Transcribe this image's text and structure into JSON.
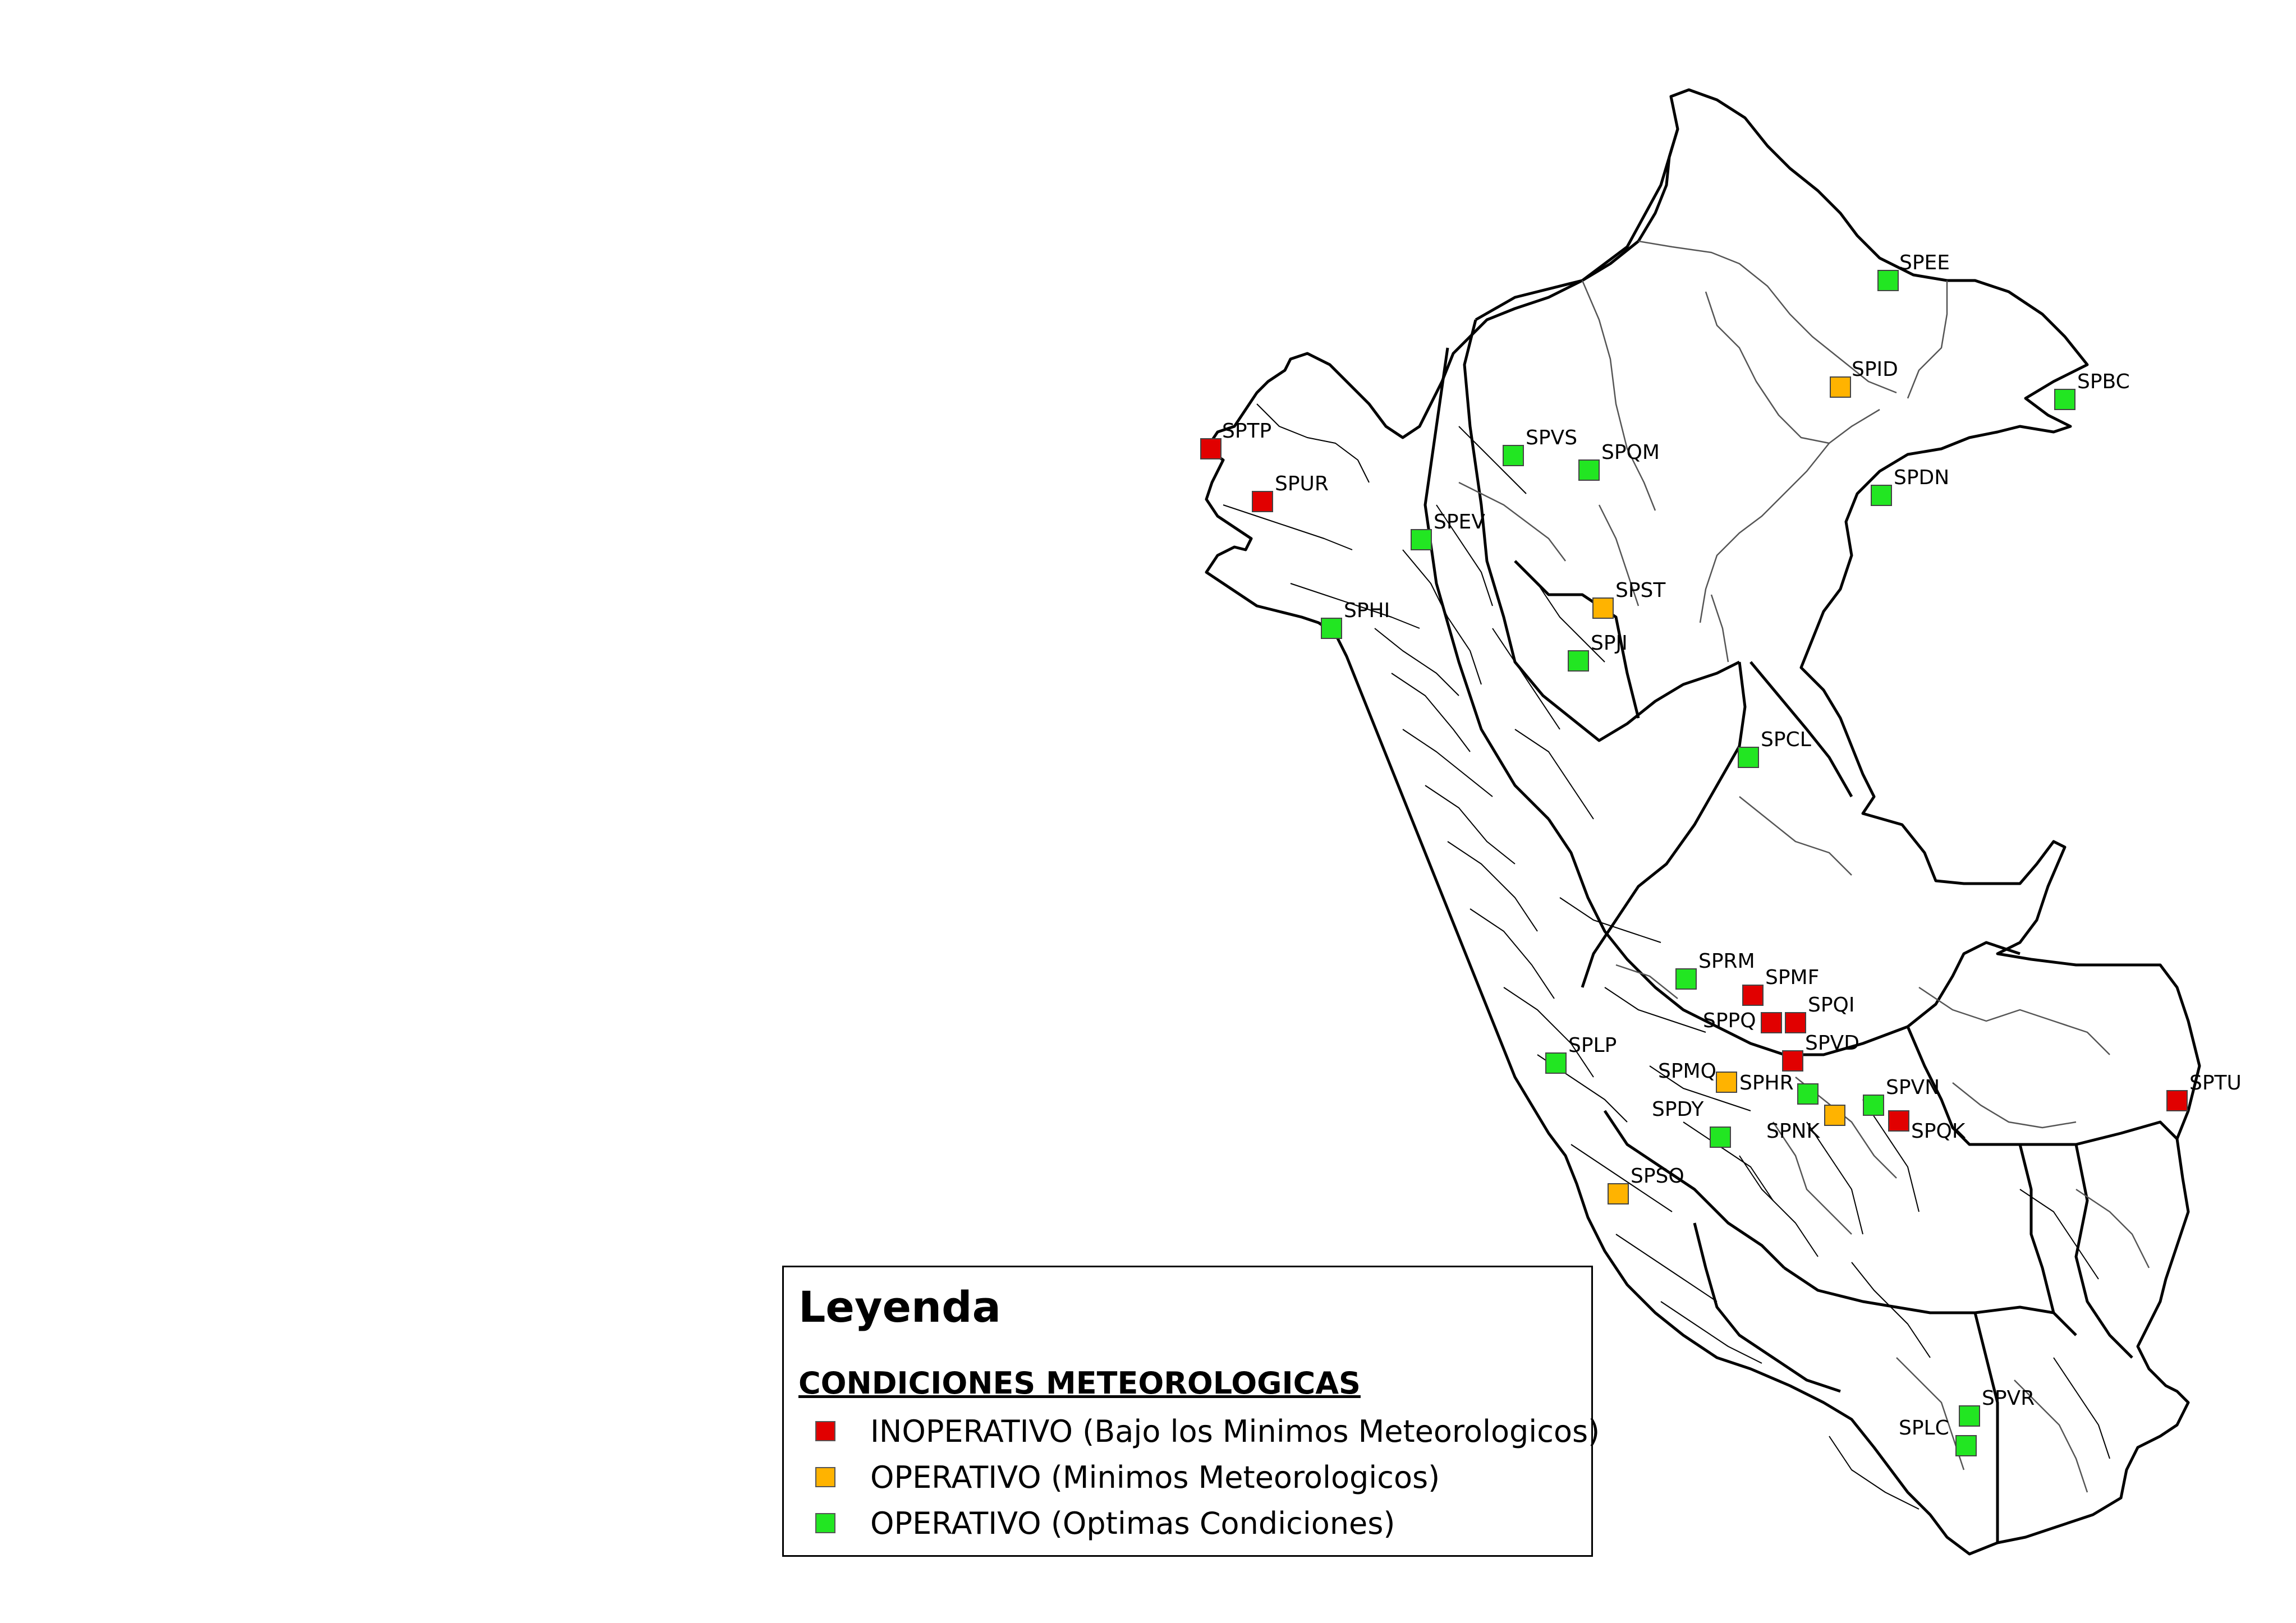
{
  "legend": {
    "title": "Leyenda",
    "subtitle": "CONDICIONES METEOROLOGICAS",
    "items": [
      {
        "label": "INOPERATIVO (Bajo los Minimos Meteorologicos)",
        "status": "inoperativo",
        "color": "#e10000"
      },
      {
        "label": "OPERATIVO (Minimos Meteorologicos)",
        "status": "minimos",
        "color": "#ffb300"
      },
      {
        "label": "OPERATIVO (Optimas Condiciones)",
        "status": "optimas",
        "color": "#22e622"
      }
    ]
  },
  "stations": [
    {
      "code": "SPEE",
      "status": "optimas"
    },
    {
      "code": "SPID",
      "status": "minimos"
    },
    {
      "code": "SPBC",
      "status": "optimas"
    },
    {
      "code": "SPTP",
      "status": "inoperativo"
    },
    {
      "code": "SPVS",
      "status": "optimas"
    },
    {
      "code": "SPQM",
      "status": "optimas"
    },
    {
      "code": "SPDN",
      "status": "optimas"
    },
    {
      "code": "SPUR",
      "status": "inoperativo"
    },
    {
      "code": "SPEV",
      "status": "optimas"
    },
    {
      "code": "SPST",
      "status": "minimos"
    },
    {
      "code": "SPHI",
      "status": "optimas"
    },
    {
      "code": "SPJI",
      "status": "optimas"
    },
    {
      "code": "SPCL",
      "status": "optimas"
    },
    {
      "code": "SPRM",
      "status": "optimas"
    },
    {
      "code": "SPMF",
      "status": "inoperativo"
    },
    {
      "code": "SPPQ",
      "status": "inoperativo"
    },
    {
      "code": "SPQI",
      "status": "inoperativo"
    },
    {
      "code": "SPLP",
      "status": "optimas"
    },
    {
      "code": "SPMQ",
      "status": "minimos"
    },
    {
      "code": "SPVD",
      "status": "inoperativo"
    },
    {
      "code": "SPHR",
      "status": "optimas"
    },
    {
      "code": "SPVN",
      "status": "optimas"
    },
    {
      "code": "SPTU",
      "status": "inoperativo"
    },
    {
      "code": "SPDY",
      "status": "optimas"
    },
    {
      "code": "SPNK",
      "status": "minimos"
    },
    {
      "code": "SPQK",
      "status": "inoperativo"
    },
    {
      "code": "SPSO",
      "status": "minimos"
    },
    {
      "code": "SPVR",
      "status": "optimas"
    },
    {
      "code": "SPLC",
      "status": "optimas"
    }
  ]
}
